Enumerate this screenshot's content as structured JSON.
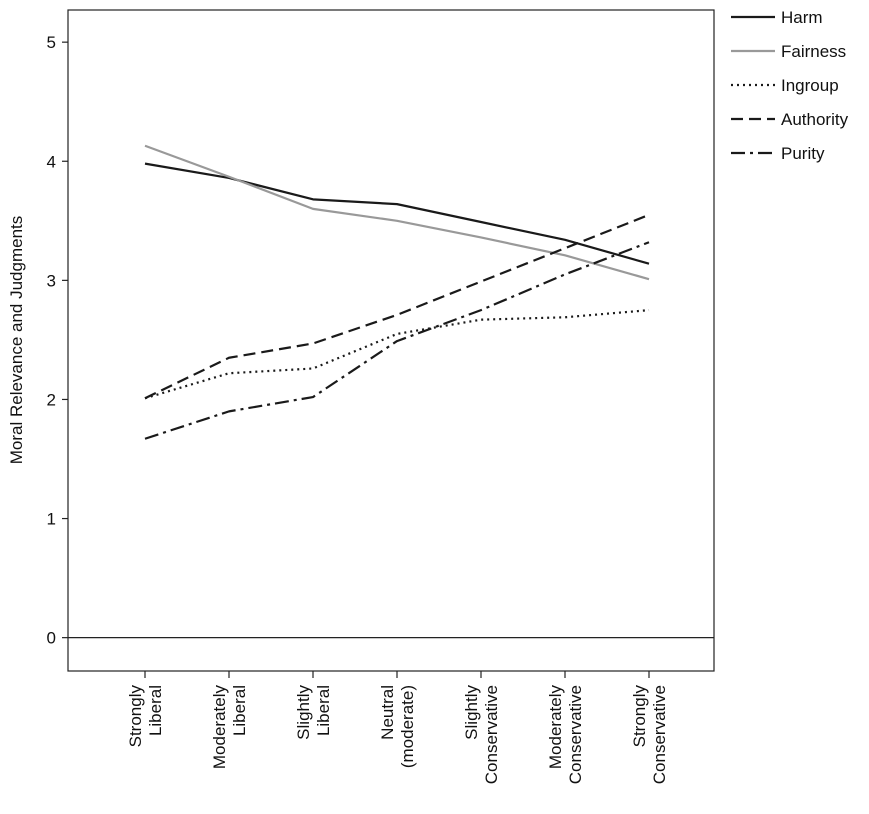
{
  "chart_data": {
    "type": "line",
    "categories": [
      [
        "Strongly",
        "Liberal"
      ],
      [
        "Moderately",
        "Liberal"
      ],
      [
        "Slightly",
        "Liberal"
      ],
      [
        "Neutral",
        "(moderate)"
      ],
      [
        "Slightly",
        "Conservative"
      ],
      [
        "Moderately",
        "Conservative"
      ],
      [
        "Strongly",
        "Conservative"
      ]
    ],
    "ylabel": "Moral Relevance and Judgments",
    "xlabel": "",
    "ylim": [
      -0.28,
      5.27
    ],
    "yticks": [
      0,
      1,
      2,
      3,
      4,
      5
    ],
    "grid": false,
    "reference_line_y": 0,
    "legend_position": "outside-top-right",
    "series": [
      {
        "name": "Harm",
        "style": "solid",
        "color": "#1a1a1a",
        "values": [
          3.98,
          3.86,
          3.68,
          3.64,
          3.49,
          3.34,
          3.14
        ]
      },
      {
        "name": "Fairness",
        "style": "solid",
        "color": "#999999",
        "values": [
          4.13,
          3.87,
          3.6,
          3.5,
          3.36,
          3.21,
          3.01
        ]
      },
      {
        "name": "Ingroup",
        "style": "dotted",
        "color": "#1a1a1a",
        "values": [
          2.01,
          2.22,
          2.26,
          2.55,
          2.67,
          2.69,
          2.75
        ]
      },
      {
        "name": "Authority",
        "style": "dashed",
        "color": "#1a1a1a",
        "values": [
          2.01,
          2.35,
          2.47,
          2.71,
          2.99,
          3.27,
          3.55
        ]
      },
      {
        "name": "Purity",
        "style": "dashdot",
        "color": "#1a1a1a",
        "values": [
          1.67,
          1.9,
          2.02,
          2.49,
          2.75,
          3.05,
          3.32
        ]
      }
    ]
  }
}
